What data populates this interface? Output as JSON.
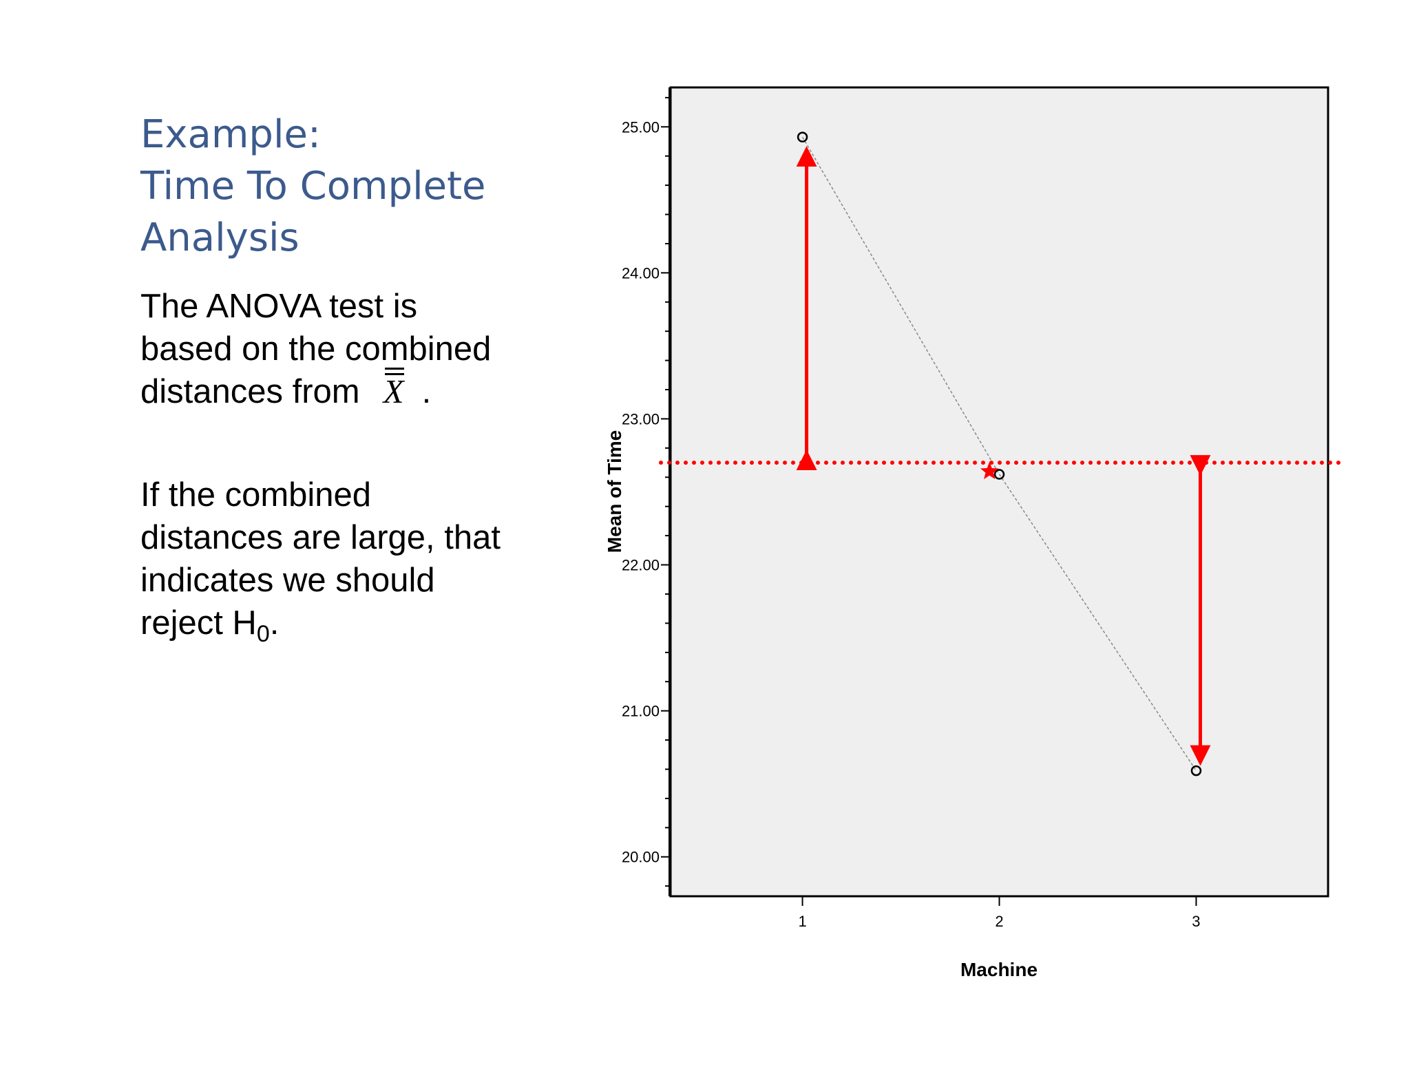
{
  "slide": {
    "title_lines": [
      "Example:",
      "Time To Complete",
      "Analysis"
    ],
    "para1": {
      "line1": "The ANOVA test is",
      "line2": "based on the combined",
      "line3_prefix": "distances from",
      "symbol": "X",
      "line3_suffix": "."
    },
    "para2": {
      "line1": "If the combined",
      "line2": "distances are large, that",
      "line3": "indicates we should",
      "line4_prefix": "reject H",
      "subscript": "0",
      "line4_suffix": "."
    }
  },
  "chart_data": {
    "type": "line",
    "x": [
      1,
      2,
      3
    ],
    "categories": [
      "1",
      "2",
      "3"
    ],
    "values": [
      24.93,
      22.62,
      20.59
    ],
    "grand_mean": 22.7,
    "marked_point": {
      "x": 1.95,
      "y": 22.64
    },
    "xlabel": "Machine",
    "ylabel": "Mean of Time",
    "ylim": [
      19.73,
      25.27
    ],
    "xlim": [
      0.33,
      3.67
    ],
    "yticks": [
      "20.00",
      "21.00",
      "22.00",
      "23.00",
      "24.00",
      "25.00"
    ],
    "colors": {
      "arrow": "#ff0000",
      "mean_line": "#ff0000",
      "plot_bg": "#f0eff0",
      "series": "#888888"
    }
  }
}
